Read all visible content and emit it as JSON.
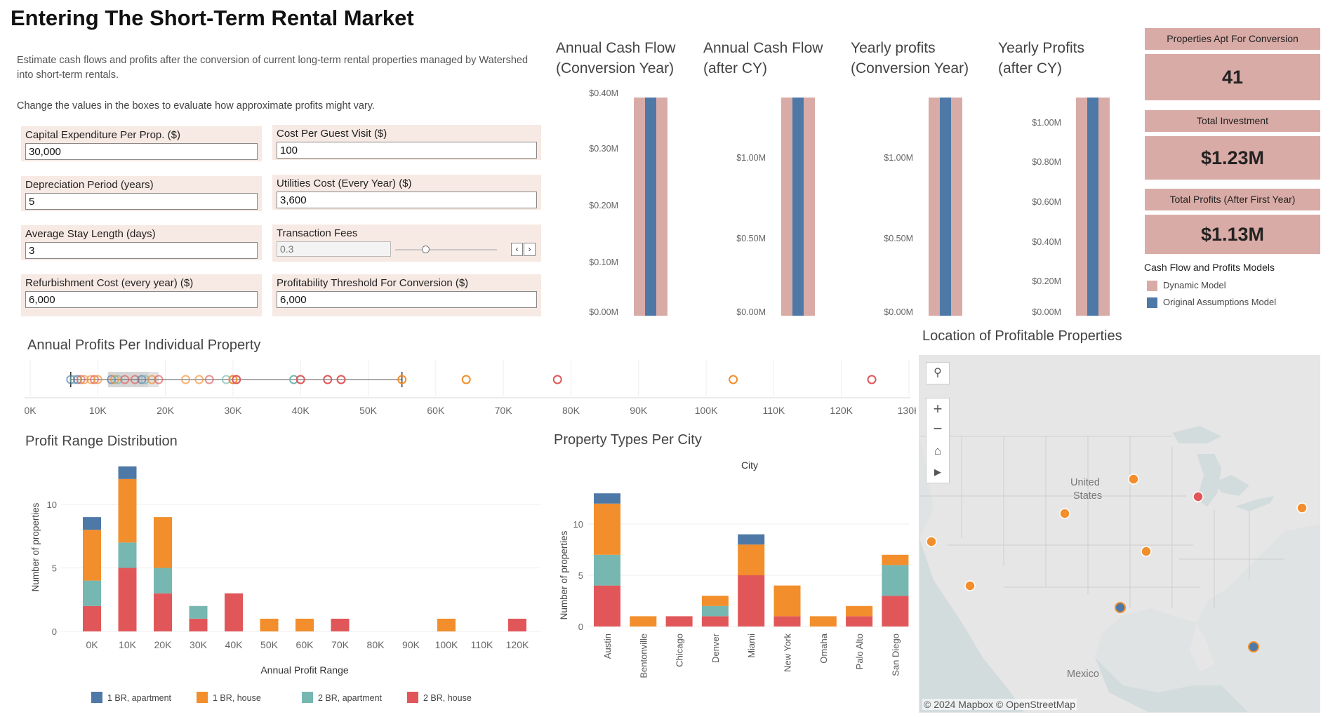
{
  "title": "Entering The Short-Term Rental Market",
  "description": "Estimate cash flows and profits after the conversion of current long-term rental properties managed by Watershed into short-term rentals.",
  "instruction": "Change the values in the boxes to evaluate how approximate profits might vary.",
  "params": {
    "capex": {
      "label": "Capital Expenditure Per Prop. ($)",
      "value": "30,000"
    },
    "depreciation": {
      "label": "Depreciation Period (years)",
      "value": "5"
    },
    "stay_length": {
      "label": "Average Stay Length (days)",
      "value": "3"
    },
    "refurbishment": {
      "label": "Refurbishment Cost (every year) ($)",
      "value": "6,000"
    },
    "cost_per_visit": {
      "label": "Cost Per Guest Visit ($)",
      "value": "100"
    },
    "utilities": {
      "label": "Utilities Cost (Every Year) ($)",
      "value": "3,600"
    },
    "transaction_fees": {
      "label": "Transaction Fees",
      "value": "0.3",
      "slider_fraction": 0.3
    },
    "threshold": {
      "label": "Profitability Threshold For Conversion ($)",
      "value": "6,000"
    }
  },
  "cashflow_charts": [
    {
      "title1": "Annual Cash Flow",
      "title2": "(Conversion Year)",
      "ticks": [
        "$0.40M",
        "$0.30M",
        "$0.20M",
        "$0.10M",
        "$0.00M"
      ]
    },
    {
      "title1": "Annual Cash Flow",
      "title2": "(after CY)",
      "ticks": [
        "$1.00M",
        "$0.50M",
        "$0.00M"
      ]
    },
    {
      "title1": "Yearly profits",
      "title2": "(Conversion Year)",
      "ticks": [
        "$1.00M",
        "$0.50M",
        "$0.00M"
      ]
    },
    {
      "title1": "Yearly Profits",
      "title2": "(after CY)",
      "ticks": [
        "$1.00M",
        "$0.80M",
        "$0.60M",
        "$0.40M",
        "$0.20M",
        "$0.00M"
      ]
    }
  ],
  "kpis": {
    "properties": {
      "label": "Properties Apt For Conversion",
      "value": "41"
    },
    "investment": {
      "label": "Total Investment",
      "value": "$1.23M"
    },
    "profits": {
      "label": "Total Profits (After First Year)",
      "value": "$1.13M"
    }
  },
  "models_legend": {
    "title": "Cash Flow and Profits Models",
    "dynamic": "Dynamic Model",
    "original": "Original Assumptions Model"
  },
  "colors": {
    "dynamic": "#d9aba6",
    "original": "#4e79a7",
    "br1_apartment": "#4e79a7",
    "br1_house": "#f28e2b",
    "br2_apartment": "#76b7b2",
    "br2_house": "#e15759",
    "param_bg": "#f7e9e3"
  },
  "annual_profits": {
    "title": "Annual Profits Per Individual Property",
    "ticks": [
      "0K",
      "10K",
      "20K",
      "30K",
      "40K",
      "50K",
      "60K",
      "70K",
      "80K",
      "90K",
      "100K",
      "110K",
      "120K",
      "130K"
    ]
  },
  "profit_range": {
    "title": "Profit Range Distribution",
    "ylabel": "Number of properties",
    "xlabel": "Annual Profit Range",
    "yticks": [
      "0",
      "5",
      "10"
    ],
    "legend": [
      "1 BR, apartment",
      "1 BR, house",
      "2 BR, apartment",
      "2 BR, house"
    ]
  },
  "property_types": {
    "title": "Property Types Per City",
    "header": "City",
    "ylabel": "Number of properties",
    "yticks": [
      "0",
      "5",
      "10"
    ]
  },
  "map": {
    "title": "Location of Profitable Properties",
    "label_country": "United States",
    "label_country_1": "United",
    "label_country_2": "States",
    "label_mexico": "Mexico",
    "attribution": "© 2024 Mapbox  © OpenStreetMap"
  },
  "chart_data": [
    {
      "type": "bar",
      "title": "Annual Cash Flow (Conversion Year)",
      "series": [
        {
          "name": "Dynamic Model",
          "values": [
            0.4
          ]
        },
        {
          "name": "Original Assumptions Model",
          "values": [
            0.4
          ]
        }
      ],
      "ylim": [
        0,
        0.4
      ]
    },
    {
      "type": "bar",
      "title": "Annual Cash Flow (after CY)",
      "series": [
        {
          "name": "Dynamic Model",
          "values": [
            1.35
          ]
        },
        {
          "name": "Original Assumptions Model",
          "values": [
            1.35
          ]
        }
      ],
      "ylim": [
        0,
        1.35
      ]
    },
    {
      "type": "bar",
      "title": "Yearly profits (Conversion Year)",
      "series": [
        {
          "name": "Dynamic Model",
          "values": [
            1.35
          ]
        },
        {
          "name": "Original Assumptions Model",
          "values": [
            1.35
          ]
        }
      ],
      "ylim": [
        0,
        1.35
      ]
    },
    {
      "type": "bar",
      "title": "Yearly Profits (after CY)",
      "series": [
        {
          "name": "Dynamic Model",
          "values": [
            1.13
          ]
        },
        {
          "name": "Original Assumptions Model",
          "values": [
            1.13
          ]
        }
      ],
      "ylim": [
        0,
        1.13
      ]
    },
    {
      "type": "scatter",
      "title": "Annual Profits Per Individual Property",
      "xlim": [
        0,
        130000
      ],
      "box": {
        "whisker_low": 6000,
        "q1": 11500,
        "median": 17500,
        "q3": 19000,
        "whisker_high": 55000
      },
      "points": [
        {
          "x": 6000,
          "cat": "br1_apartment"
        },
        {
          "x": 6500,
          "cat": "br2_apartment"
        },
        {
          "x": 7000,
          "cat": "br1_apartment"
        },
        {
          "x": 7500,
          "cat": "br2_house"
        },
        {
          "x": 8000,
          "cat": "br1_house"
        },
        {
          "x": 9000,
          "cat": "br1_house"
        },
        {
          "x": 9500,
          "cat": "br2_house"
        },
        {
          "x": 10000,
          "cat": "br1_house"
        },
        {
          "x": 12000,
          "cat": "br1_apartment"
        },
        {
          "x": 12500,
          "cat": "br1_house"
        },
        {
          "x": 13000,
          "cat": "br2_apartment"
        },
        {
          "x": 14000,
          "cat": "br2_house"
        },
        {
          "x": 15500,
          "cat": "br2_house"
        },
        {
          "x": 16500,
          "cat": "br1_apartment"
        },
        {
          "x": 17000,
          "cat": "br2_apartment"
        },
        {
          "x": 18000,
          "cat": "br1_house"
        },
        {
          "x": 19000,
          "cat": "br2_house"
        },
        {
          "x": 23000,
          "cat": "br1_house"
        },
        {
          "x": 25000,
          "cat": "br1_house"
        },
        {
          "x": 26500,
          "cat": "br2_house"
        },
        {
          "x": 29000,
          "cat": "br2_apartment"
        },
        {
          "x": 30000,
          "cat": "br1_house"
        },
        {
          "x": 30500,
          "cat": "br2_house"
        },
        {
          "x": 39000,
          "cat": "br2_apartment"
        },
        {
          "x": 40000,
          "cat": "br2_house"
        },
        {
          "x": 44000,
          "cat": "br2_house"
        },
        {
          "x": 46000,
          "cat": "br2_house"
        },
        {
          "x": 55000,
          "cat": "br1_house"
        },
        {
          "x": 64500,
          "cat": "br1_house"
        },
        {
          "x": 78000,
          "cat": "br2_house"
        },
        {
          "x": 104000,
          "cat": "br1_house"
        },
        {
          "x": 124500,
          "cat": "br2_house"
        }
      ]
    },
    {
      "type": "bar",
      "title": "Profit Range Distribution",
      "xlabel": "Annual Profit Range",
      "ylabel": "Number of properties",
      "categories": [
        "0K",
        "10K",
        "20K",
        "30K",
        "40K",
        "50K",
        "60K",
        "70K",
        "80K",
        "90K",
        "100K",
        "110K",
        "120K"
      ],
      "series": [
        {
          "name": "2 BR, house",
          "key": "br2_house",
          "values": [
            2,
            5,
            3,
            1,
            3,
            0,
            0,
            1,
            0,
            0,
            0,
            0,
            1
          ]
        },
        {
          "name": "2 BR, apartment",
          "key": "br2_apartment",
          "values": [
            2,
            2,
            2,
            1,
            0,
            0,
            0,
            0,
            0,
            0,
            0,
            0,
            0
          ]
        },
        {
          "name": "1 BR, house",
          "key": "br1_house",
          "values": [
            4,
            5,
            4,
            0,
            0,
            1,
            1,
            0,
            0,
            0,
            1,
            0,
            0
          ]
        },
        {
          "name": "1 BR, apartment",
          "key": "br1_apartment",
          "values": [
            1,
            1,
            0,
            0,
            0,
            0,
            0,
            0,
            0,
            0,
            0,
            0,
            0
          ]
        }
      ],
      "ylim": [
        0,
        14
      ]
    },
    {
      "type": "bar",
      "title": "Property Types Per City",
      "ylabel": "Number of properties",
      "categories": [
        "Austin",
        "Bentonville",
        "Chicago",
        "Denver",
        "Miami",
        "New York",
        "Omaha",
        "Palo Alto",
        "San Diego"
      ],
      "series": [
        {
          "name": "2 BR, house",
          "key": "br2_house",
          "values": [
            4,
            0,
            1,
            1,
            5,
            1,
            0,
            1,
            3
          ]
        },
        {
          "name": "2 BR, apartment",
          "key": "br2_apartment",
          "values": [
            3,
            0,
            0,
            1,
            0,
            0,
            0,
            0,
            3
          ]
        },
        {
          "name": "1 BR, house",
          "key": "br1_house",
          "values": [
            5,
            1,
            0,
            1,
            3,
            3,
            1,
            1,
            1
          ]
        },
        {
          "name": "1 BR, apartment",
          "key": "br1_apartment",
          "values": [
            1,
            0,
            0,
            0,
            1,
            0,
            0,
            0,
            0
          ]
        }
      ],
      "ylim": [
        0,
        14
      ]
    }
  ]
}
